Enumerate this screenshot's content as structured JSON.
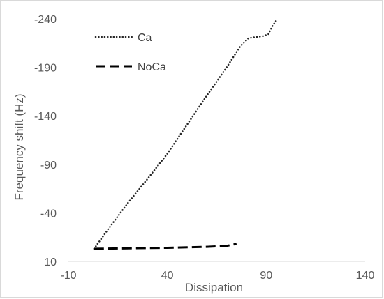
{
  "chart_data": {
    "type": "line",
    "title": "",
    "xlabel": "Dissipation",
    "ylabel": "Frequency shift (Hz)",
    "xlim": [
      -10,
      140
    ],
    "ylim": [
      10,
      -240
    ],
    "y_reversed": true,
    "xticks": [
      -10,
      40,
      90,
      140
    ],
    "yticks": [
      10,
      -40,
      -90,
      -140,
      -190,
      -240
    ],
    "xtick_labels": [
      "-10",
      "40",
      "90",
      "140"
    ],
    "ytick_labels": [
      "10",
      "-40",
      "-90",
      "-140",
      "-190",
      "-240"
    ],
    "grid": false,
    "legend_position": "top-left",
    "series": [
      {
        "name": "Ca",
        "style": "dotted",
        "color": "#262626",
        "x": [
          3,
          10,
          20,
          30,
          40,
          50,
          60,
          70,
          77,
          81,
          84,
          88,
          91,
          93,
          95
        ],
        "y": [
          -3,
          -23,
          -50,
          -75,
          -101,
          -131,
          -161,
          -190,
          -212,
          -220,
          -221,
          -222,
          -224,
          -232,
          -238
        ]
      },
      {
        "name": "NoCa",
        "style": "dashed",
        "color": "#000000",
        "x": [
          3,
          20,
          40,
          60,
          70,
          75
        ],
        "y": [
          -3,
          -3.5,
          -4,
          -5,
          -6,
          -8
        ]
      }
    ]
  }
}
